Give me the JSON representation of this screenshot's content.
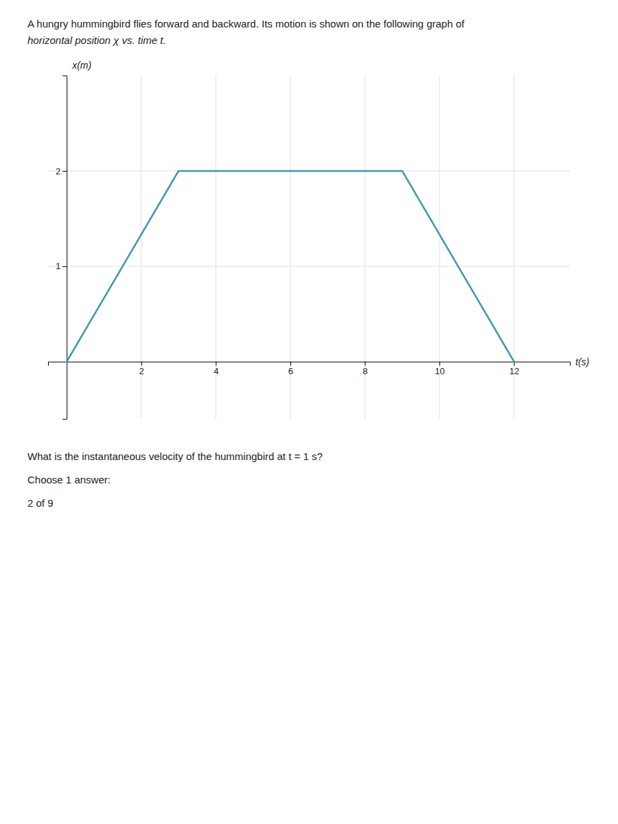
{
  "chart_data": {
    "type": "line",
    "title": "A hungry hummingbird flies forward and backward. Its motion is shown on the following graph of",
    "subtitle": "horizontal position χ vs. time t.",
    "x": [
      0,
      3,
      9,
      12
    ],
    "values": [
      0,
      2,
      2,
      0
    ],
    "color": "#3a98ab",
    "xlabel": "t(s)",
    "ylabel": "x(m)",
    "xlim": [
      -0.5,
      13.5
    ],
    "ylim": [
      -0.6,
      3.0
    ],
    "xticks": [
      2,
      4,
      6,
      8,
      10,
      12
    ],
    "yticks": [
      1,
      2
    ],
    "grid": true,
    "annotations": [
      "What is the instantaneous velocity of the hummingbird at t = 1 s?",
      "Choose 1 answer:",
      "2 of 9"
    ]
  }
}
